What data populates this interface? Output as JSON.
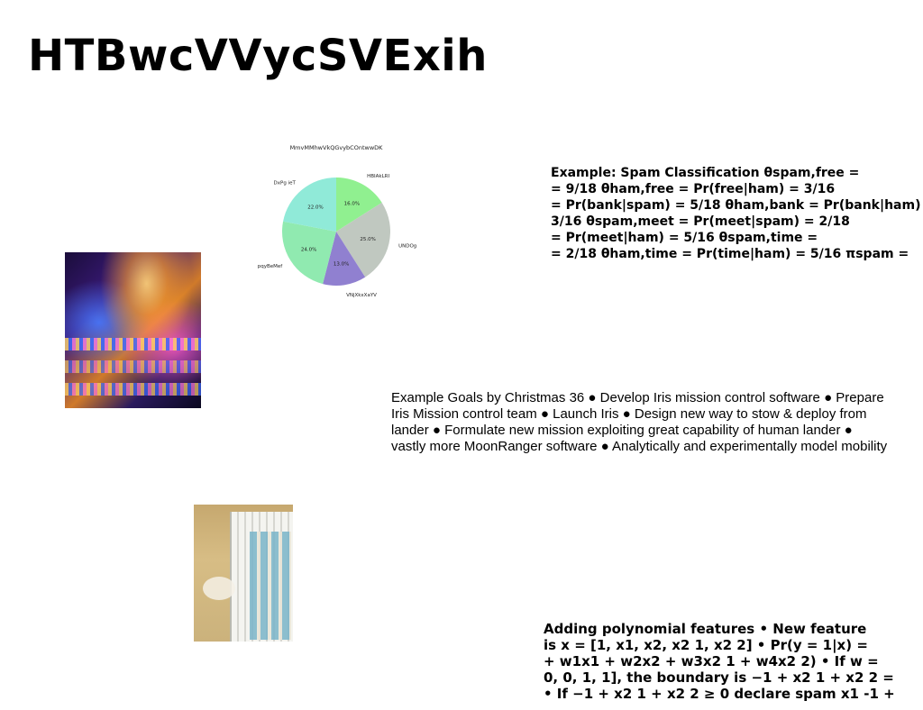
{
  "slide": {
    "title": "HTBwcVVycSVExih"
  },
  "chart_data": {
    "type": "pie",
    "title": "MmvMMhwVkQGvybCOntwwDK",
    "slices": [
      {
        "label": "HBIAkLRI",
        "value": 16.0,
        "pct_label": "16.0%",
        "color": "#90f090"
      },
      {
        "label": "UNDOg",
        "value": 25.0,
        "pct_label": "25.0%",
        "color": "#c0c8c0"
      },
      {
        "label": "VNjXkxXaYV",
        "value": 13.0,
        "pct_label": "13.0%",
        "color": "#9080d0"
      },
      {
        "label": "pqyBeMef",
        "value": 24.0,
        "pct_label": "24.0%",
        "color": "#90eab0"
      },
      {
        "label": "DxPg ieT",
        "value": 22.0,
        "pct_label": "22.0%",
        "color": "#90ead8"
      }
    ]
  },
  "images": {
    "carnival": {
      "icon": "carnival-lights-photo"
    },
    "building": {
      "icon": "building-photo"
    }
  },
  "spam_text": {
    "lines": [
      "Example: Spam Classification θspam,free =",
      "= 9/18 θham,free = Pr(free|ham) = 3/16",
      "= Pr(bank|spam) = 5/18 θham,bank = Pr(bank|ham) =",
      "3/16 θspam,meet = Pr(meet|spam) = 2/18",
      "= Pr(meet|ham) = 5/16 θspam,time =",
      "= 2/18 θham,time = Pr(time|ham) = 5/16 πspam ="
    ]
  },
  "goals_text": {
    "lines": [
      "Example Goals by Christmas 36 ● Develop Iris mission control software ● Prepare",
      "Iris Mission control team ● Launch Iris ● Design new way to stow & deploy from",
      "lander ● Formulate new mission exploiting great capability of human lander ●",
      "vastly more MoonRanger software ● Analytically and experimentally model mobility"
    ]
  },
  "poly_text": {
    "lines": [
      "Adding polynomial features • New feature",
      "is x = [1, x1, x2, x2 1, x2 2] • Pr(y = 1|x) =",
      "+ w1x1 + w2x2 + w3x2 1 + w4x2 2) • If w =",
      "0, 0, 1, 1], the boundary is −1 + x2 1 + x2 2 =",
      "• If −1 + x2 1 + x2 2 ≥ 0 declare spam x1 -1 +"
    ]
  }
}
